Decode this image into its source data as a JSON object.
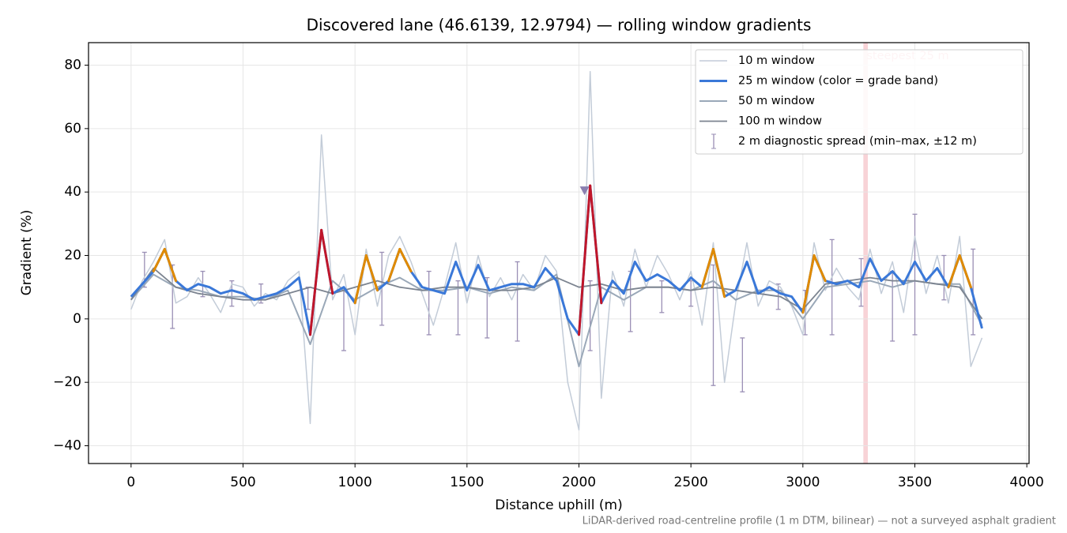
{
  "chart_data": {
    "type": "line",
    "title": "Discovered lane (46.6139, 12.9794) — rolling window gradients",
    "x_label": "Distance uphill (m)",
    "y_label": "Gradient (%)",
    "footnote": "LiDAR-derived road-centreline profile (1 m DTM, bilinear) — not a surveyed asphalt gradient",
    "xlim": [
      -190,
      4010
    ],
    "ylim": [
      -45.6,
      87.1
    ],
    "xticks": [
      0,
      500,
      1000,
      1500,
      2000,
      2500,
      3000,
      3500,
      4000
    ],
    "yticks": [
      {
        "value": -40,
        "label": "−40"
      },
      {
        "value": -20,
        "label": "−20"
      },
      0,
      20,
      40,
      60,
      80
    ],
    "grid": true,
    "legend": "upper right",
    "grade_bands": [
      {
        "min": 20,
        "color": "#e08a00"
      },
      {
        "min": 25,
        "color": "#c0162a"
      }
    ],
    "series": [
      {
        "name": "10 m window",
        "color": "#c3ccd8",
        "width": 1.5,
        "x": [
          0,
          50,
          100,
          150,
          200,
          250,
          300,
          350,
          400,
          450,
          500,
          550,
          600,
          650,
          700,
          750,
          800,
          850,
          900,
          950,
          1000,
          1050,
          1100,
          1150,
          1200,
          1250,
          1300,
          1350,
          1400,
          1450,
          1500,
          1550,
          1600,
          1650,
          1700,
          1750,
          1800,
          1850,
          1900,
          1950,
          2000,
          2050,
          2100,
          2150,
          2200,
          2250,
          2300,
          2350,
          2400,
          2450,
          2500,
          2550,
          2600,
          2650,
          2700,
          2750,
          2800,
          2850,
          2900,
          2950,
          3000,
          3050,
          3100,
          3150,
          3200,
          3250,
          3300,
          3350,
          3400,
          3450,
          3500,
          3550,
          3600,
          3650,
          3700,
          3750,
          3800
        ],
        "values": [
          3,
          12,
          18,
          25,
          5,
          7,
          13,
          8,
          2,
          11,
          10,
          4,
          8,
          6,
          12,
          15,
          -33,
          58,
          6,
          14,
          -5,
          22,
          4,
          20,
          26,
          18,
          8,
          -2,
          10,
          24,
          5,
          20,
          7,
          13,
          6,
          14,
          9,
          20,
          15,
          -20,
          -35,
          78,
          -25,
          15,
          4,
          22,
          10,
          20,
          14,
          6,
          15,
          -2,
          24,
          -20,
          5,
          24,
          4,
          12,
          10,
          4,
          -5,
          24,
          9,
          16,
          10,
          6,
          22,
          8,
          18,
          2,
          26,
          8,
          20,
          5,
          26,
          -15,
          -6
        ]
      },
      {
        "name": "25 m window (color = grade band)",
        "color": "#3a78d8",
        "width": 3,
        "x": [
          0,
          50,
          100,
          150,
          200,
          250,
          300,
          350,
          400,
          450,
          500,
          550,
          600,
          650,
          700,
          750,
          800,
          850,
          900,
          950,
          1000,
          1050,
          1100,
          1150,
          1200,
          1250,
          1300,
          1350,
          1400,
          1450,
          1500,
          1550,
          1600,
          1650,
          1700,
          1750,
          1800,
          1850,
          1900,
          1950,
          2000,
          2050,
          2100,
          2150,
          2200,
          2250,
          2300,
          2350,
          2400,
          2450,
          2500,
          2550,
          2600,
          2650,
          2700,
          2750,
          2800,
          2850,
          2900,
          2950,
          3000,
          3050,
          3100,
          3150,
          3200,
          3250,
          3300,
          3350,
          3400,
          3450,
          3500,
          3550,
          3600,
          3650,
          3700,
          3750,
          3800
        ],
        "values": [
          7,
          11,
          15,
          22,
          12,
          9,
          11,
          10,
          8,
          9,
          8,
          6,
          7,
          8,
          10,
          13,
          -5,
          28,
          8,
          10,
          5,
          20,
          9,
          12,
          22,
          15,
          10,
          9,
          8,
          18,
          9,
          17,
          9,
          10,
          11,
          11,
          10,
          16,
          12,
          0,
          -5,
          42,
          5,
          12,
          8,
          18,
          12,
          14,
          12,
          9,
          13,
          10,
          22,
          7,
          9,
          18,
          8,
          10,
          8,
          7,
          2,
          20,
          12,
          11,
          12,
          10,
          19,
          12,
          15,
          11,
          18,
          12,
          16,
          10,
          20,
          10,
          -3
        ]
      },
      {
        "name": "50 m window",
        "color": "#9aa8b8",
        "width": 2,
        "x": [
          0,
          100,
          200,
          300,
          400,
          500,
          600,
          700,
          800,
          900,
          1000,
          1100,
          1200,
          1300,
          1400,
          1500,
          1600,
          1700,
          1800,
          1900,
          2000,
          2100,
          2200,
          2300,
          2400,
          2500,
          2600,
          2700,
          2800,
          2900,
          3000,
          3100,
          3200,
          3300,
          3400,
          3500,
          3600,
          3700,
          3800
        ],
        "values": [
          6,
          14,
          10,
          9,
          7,
          7,
          6,
          9,
          -8,
          12,
          6,
          10,
          13,
          9,
          9,
          10,
          8,
          10,
          9,
          14,
          -15,
          10,
          6,
          10,
          10,
          9,
          12,
          6,
          9,
          9,
          0,
          10,
          11,
          12,
          10,
          12,
          11,
          11,
          -2
        ]
      },
      {
        "name": "100 m window",
        "color": "#7c8490",
        "width": 1.8,
        "x": [
          0,
          100,
          200,
          300,
          400,
          500,
          600,
          700,
          800,
          900,
          1000,
          1100,
          1200,
          1300,
          1400,
          1500,
          1600,
          1700,
          1800,
          1900,
          2000,
          2100,
          2200,
          2300,
          2400,
          2500,
          2600,
          2700,
          2800,
          2900,
          3000,
          3100,
          3200,
          3300,
          3400,
          3500,
          3600,
          3700,
          3800
        ],
        "values": [
          6,
          16,
          10,
          8,
          7,
          6,
          6,
          8,
          10,
          8,
          10,
          12,
          10,
          9,
          10,
          10,
          9,
          9,
          10,
          13,
          10,
          11,
          9,
          10,
          10,
          9,
          10,
          9,
          8,
          7,
          3,
          11,
          12,
          13,
          12,
          12,
          11,
          10,
          0
        ]
      }
    ],
    "error_bars": {
      "name": "2 m diagnostic spread (min–max, ±12 m)",
      "color": "#9a8fb5",
      "x": [
        60,
        185,
        320,
        450,
        580,
        790,
        950,
        1120,
        1330,
        1460,
        1590,
        1725,
        2050,
        2230,
        2370,
        2500,
        2600,
        2730,
        2890,
        3010,
        3130,
        3260,
        3400,
        3500,
        3630,
        3760
      ],
      "low": [
        10,
        -3,
        7,
        4,
        5,
        3,
        -10,
        -2,
        -5,
        -5,
        -6,
        -7,
        -10,
        -4,
        2,
        4,
        -21,
        -23,
        3,
        -5,
        -5,
        4,
        -7,
        -5,
        6,
        -5
      ],
      "high": [
        21,
        17,
        15,
        12,
        11,
        10,
        9,
        21,
        15,
        12,
        13,
        18,
        12,
        15,
        12,
        12,
        17,
        -6,
        11,
        9,
        25,
        19,
        15,
        33,
        20,
        22
      ]
    },
    "steepest": {
      "label": "steepest 25 m",
      "x_start": 3270,
      "x_end": 3290,
      "color": "#f4b6bc"
    },
    "peak_marker": {
      "x": 2025,
      "y": 40.5,
      "color": "#8a7fb0"
    }
  }
}
